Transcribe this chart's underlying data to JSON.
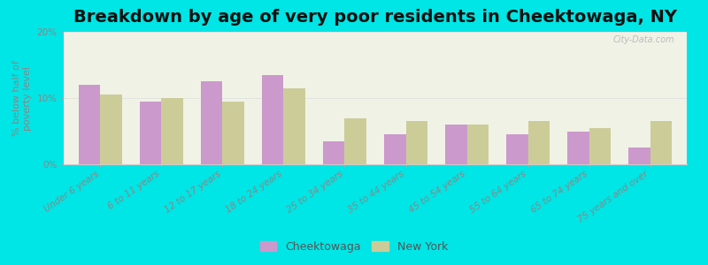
{
  "title": "Breakdown by age of very poor residents in Cheektowaga, NY",
  "categories": [
    "Under 6 years",
    "6 to 11 years",
    "12 to 17 years",
    "18 to 24 years",
    "25 to 34 years",
    "35 to 44 years",
    "45 to 54 years",
    "55 to 64 years",
    "65 to 74 years",
    "75 years and over"
  ],
  "cheektowaga": [
    12.0,
    9.5,
    12.5,
    13.5,
    3.5,
    4.5,
    6.0,
    4.5,
    5.0,
    2.5
  ],
  "new_york": [
    10.5,
    10.0,
    9.5,
    11.5,
    7.0,
    6.5,
    6.0,
    6.5,
    5.5,
    6.5
  ],
  "cheektowaga_color": "#cc99cc",
  "new_york_color": "#cccc99",
  "background_outer": "#00e5e5",
  "background_plot": "#f0f2e6",
  "ylabel": "% below half of\npoverty level",
  "ylim": [
    0,
    20
  ],
  "yticks": [
    0,
    10,
    20
  ],
  "ytick_labels": [
    "0%",
    "10%",
    "20%"
  ],
  "title_fontsize": 14,
  "axis_fontsize": 8,
  "tick_fontsize": 7.5,
  "legend_fontsize": 9,
  "bar_width": 0.35
}
